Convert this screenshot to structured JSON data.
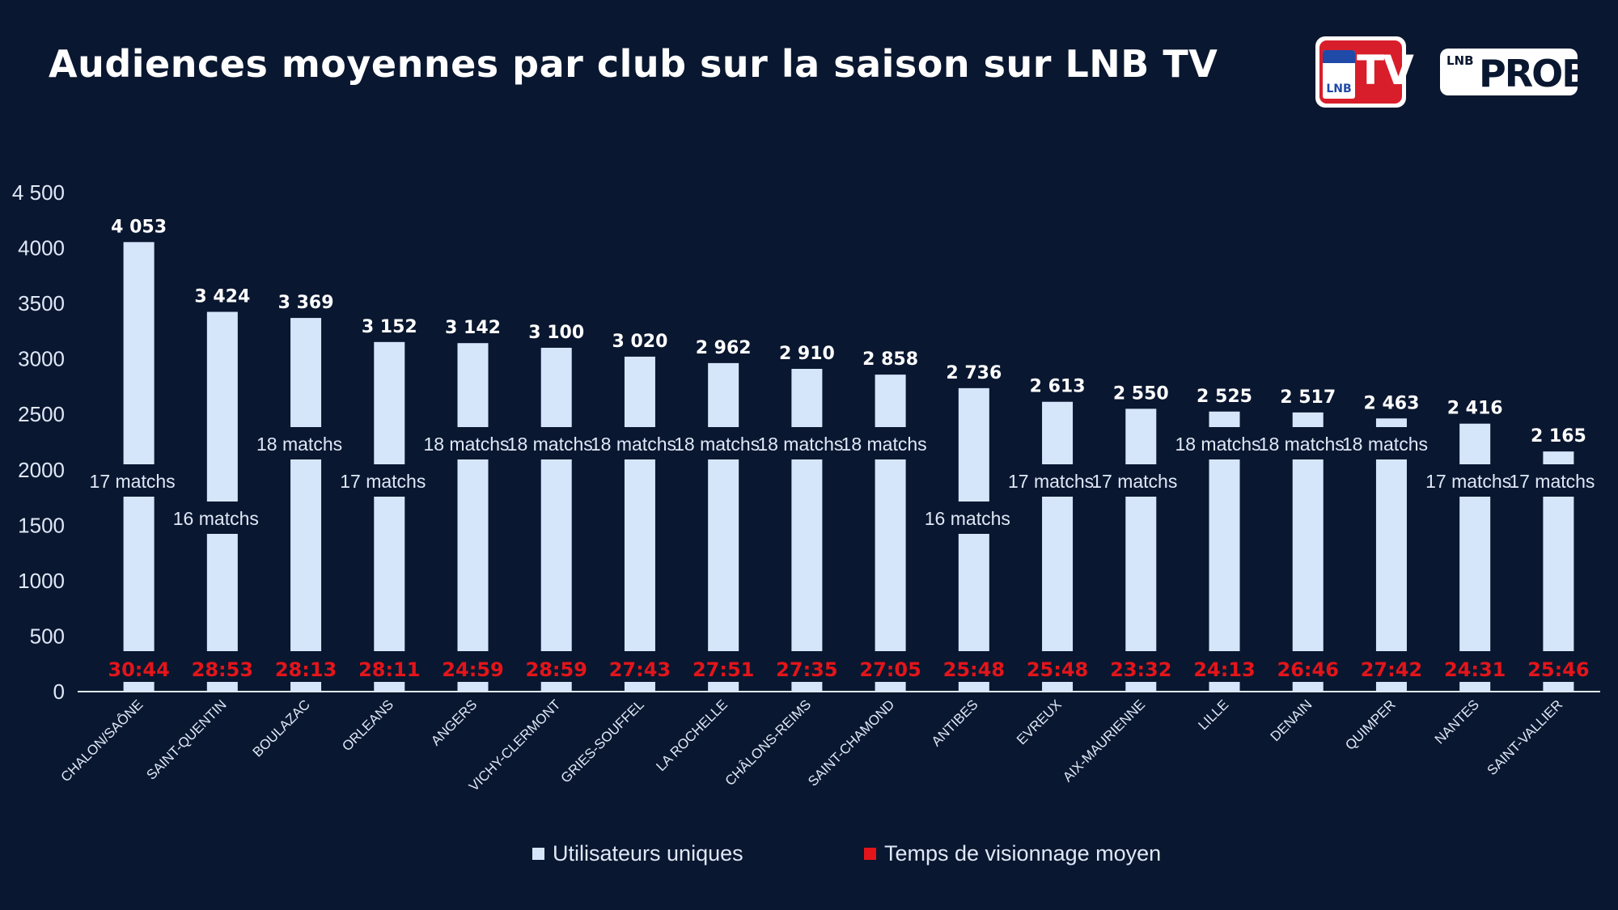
{
  "title": "Audiences moyennes par club sur la saison sur LNB TV",
  "logos": {
    "lnb_tv": {
      "text_lnb": "LNB",
      "text_tv": "TV"
    },
    "lnb_prob": {
      "text_lnb": "LNB",
      "text_pro": "PROB"
    }
  },
  "colors": {
    "background": "#0a1730",
    "bar": "#d6e6fa",
    "time_label": "#e3151a",
    "value_label": "#ffffff",
    "matches_label": "#dfe8f7"
  },
  "legend": {
    "position": "bottom",
    "items": [
      {
        "label": "Utilisateurs uniques",
        "color": "#d6e6fa"
      },
      {
        "label": "Temps de visionnage moyen",
        "color": "#e3151a"
      }
    ]
  },
  "chart_data": {
    "type": "bar",
    "title": "Audiences moyennes par club sur la saison sur LNB TV",
    "xlabel": "",
    "ylabel": "",
    "ylim": [
      0,
      4500
    ],
    "yticks": [
      0,
      500,
      1000,
      1500,
      2000,
      2500,
      3000,
      3500,
      4000,
      4500
    ],
    "ytick_labels": [
      "0",
      "500",
      "1000",
      "1500",
      "2000",
      "2500",
      "3000",
      "3500",
      "4000",
      "4 500"
    ],
    "grid": false,
    "categories": [
      "CHALON/SAÔNE",
      "SAINT-QUENTIN",
      "BOULAZAC",
      "ORLEANS",
      "ANGERS",
      "VICHY-CLERMONT",
      "GRIES-SOUFFEL",
      "LA ROCHELLE",
      "CHÂLONS-REIMS",
      "SAINT-CHAMOND",
      "ANTIBES",
      "EVREUX",
      "AIX-MAURIENNE",
      "LILLE",
      "DENAIN",
      "QUIMPER",
      "NANTES",
      "SAINT-VALLIER"
    ],
    "series": [
      {
        "name": "Utilisateurs uniques",
        "values": [
          4053,
          3424,
          3369,
          3152,
          3142,
          3100,
          3020,
          2962,
          2910,
          2858,
          2736,
          2613,
          2550,
          2525,
          2517,
          2463,
          2416,
          2165
        ],
        "value_labels": [
          "4 053",
          "3 424",
          "3 369",
          "3 152",
          "3 142",
          "3 100",
          "3 020",
          "2 962",
          "2 910",
          "2 858",
          "2 736",
          "2 613",
          "2 550",
          "2 525",
          "2 517",
          "2 463",
          "2 416",
          "2 165"
        ]
      },
      {
        "name": "Temps de visionnage moyen",
        "labels": [
          "30:44",
          "28:53",
          "28:13",
          "28:11",
          "24:59",
          "28:59",
          "27:43",
          "27:51",
          "27:35",
          "27:05",
          "25:48",
          "25:48",
          "23:32",
          "24:13",
          "26:46",
          "27:42",
          "24:31",
          "25:46"
        ]
      }
    ],
    "matches": [
      "17 matchs",
      "16 matchs",
      "18 matchs",
      "17 matchs",
      "18 matchs",
      "18 matchs",
      "18 matchs",
      "18 matchs",
      "18 matchs",
      "18 matchs",
      "16 matchs",
      "17 matchs",
      "17 matchs",
      "18 matchs",
      "18 matchs",
      "18 matchs",
      "17 matchs",
      "17 matchs"
    ]
  }
}
